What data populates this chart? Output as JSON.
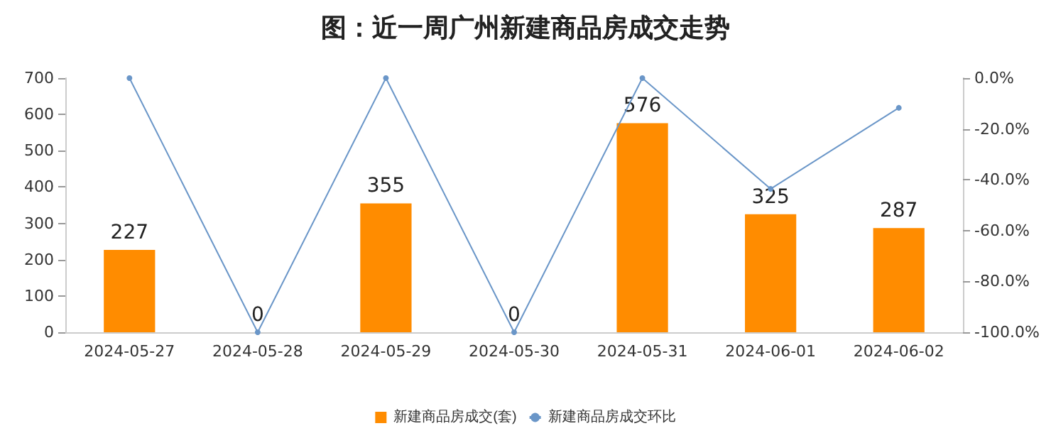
{
  "chart_data": {
    "type": "bar",
    "title": "图：近一周广州新建商品房成交走势",
    "categories": [
      "2024-05-27",
      "2024-05-28",
      "2024-05-29",
      "2024-05-30",
      "2024-05-31",
      "2024-06-01",
      "2024-06-02"
    ],
    "series": [
      {
        "name": "新建商品房成交(套)",
        "color": "#ff8c00",
        "values": [
          227,
          0,
          355,
          0,
          576,
          325,
          287
        ],
        "value_labels": [
          "227",
          "0",
          "355",
          "0",
          "576",
          "325",
          "287"
        ]
      },
      {
        "name": "新建商品房成交环比",
        "type": "line",
        "axis": "y2",
        "color": "#6a96c8",
        "marker": "circle",
        "values": [
          0,
          -100,
          0,
          -100,
          0,
          -43.6,
          -11.7
        ]
      }
    ],
    "ylim": [
      0,
      700
    ],
    "yticks": [
      0,
      100,
      200,
      300,
      400,
      500,
      600,
      700
    ],
    "y2lim": [
      -100,
      0
    ],
    "y2ticks": [
      {
        "value": 0,
        "label": "0.0%"
      },
      {
        "value": -20,
        "label": "-20.0%"
      },
      {
        "value": -40,
        "label": "-40.0%"
      },
      {
        "value": -60,
        "label": "-60.0%"
      },
      {
        "value": -80,
        "label": "-80.0%"
      },
      {
        "value": -100,
        "label": "-100.0%"
      }
    ],
    "grid": false,
    "legend": "bottom"
  }
}
